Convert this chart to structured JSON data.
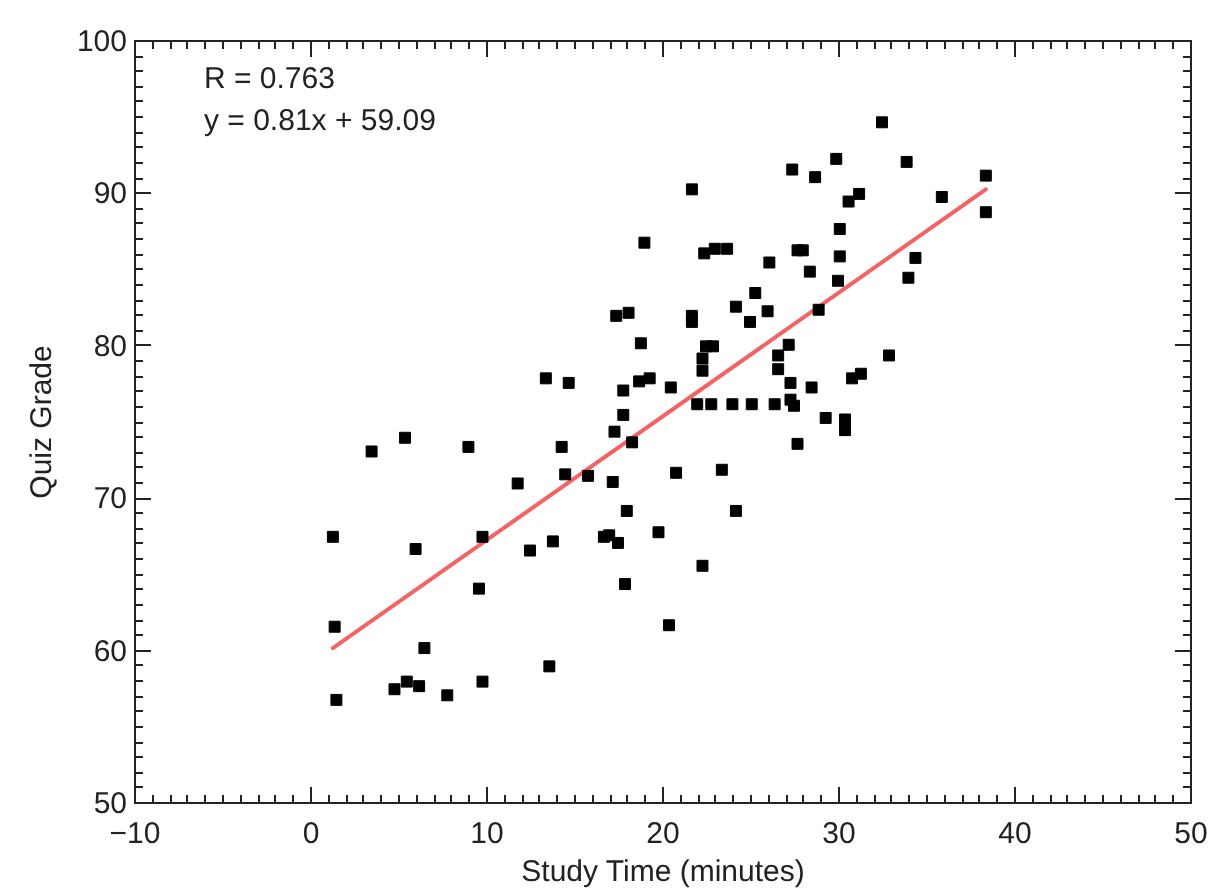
{
  "chart_data": {
    "type": "scatter",
    "xlabel": "Study Time (minutes)",
    "ylabel": "Quiz Grade",
    "annotations": [
      "R = 0.763",
      "y = 0.81x + 59.09"
    ],
    "xlim": [
      -10,
      50
    ],
    "ylim": [
      50,
      100
    ],
    "xticks": [
      -10,
      {
        "value": -9,
        "label": null
      },
      {
        "value": -8,
        "label": null
      },
      {
        "value": -7,
        "label": null
      },
      {
        "value": -6,
        "label": null
      },
      {
        "value": -5,
        "label": null
      },
      {
        "value": -4,
        "label": null
      },
      {
        "value": -3,
        "label": null
      },
      {
        "value": -2,
        "label": null
      },
      {
        "value": -1,
        "label": null
      },
      0,
      {
        "value": 1,
        "label": null
      },
      {
        "value": 2,
        "label": null
      },
      {
        "value": 3,
        "label": null
      },
      {
        "value": 4,
        "label": null
      },
      {
        "value": 5,
        "label": null
      },
      {
        "value": 6,
        "label": null
      },
      {
        "value": 7,
        "label": null
      },
      {
        "value": 8,
        "label": null
      },
      {
        "value": 9,
        "label": null
      },
      10,
      {
        "value": 11,
        "label": null
      },
      {
        "value": 12,
        "label": null
      },
      {
        "value": 13,
        "label": null
      },
      {
        "value": 14,
        "label": null
      },
      {
        "value": 15,
        "label": null
      },
      {
        "value": 16,
        "label": null
      },
      {
        "value": 17,
        "label": null
      },
      {
        "value": 18,
        "label": null
      },
      {
        "value": 19,
        "label": null
      },
      20,
      {
        "value": 21,
        "label": null
      },
      {
        "value": 22,
        "label": null
      },
      {
        "value": 23,
        "label": null
      },
      {
        "value": 24,
        "label": null
      },
      {
        "value": 25,
        "label": null
      },
      {
        "value": 26,
        "label": null
      },
      {
        "value": 27,
        "label": null
      },
      {
        "value": 28,
        "label": null
      },
      {
        "value": 29,
        "label": null
      },
      30,
      {
        "value": 31,
        "label": null
      },
      {
        "value": 32,
        "label": null
      },
      {
        "value": 33,
        "label": null
      },
      {
        "value": 34,
        "label": null
      },
      {
        "value": 35,
        "label": null
      },
      {
        "value": 36,
        "label": null
      },
      {
        "value": 37,
        "label": null
      },
      {
        "value": 38,
        "label": null
      },
      {
        "value": 39,
        "label": null
      },
      40,
      {
        "value": 41,
        "label": null
      },
      {
        "value": 42,
        "label": null
      },
      {
        "value": 43,
        "label": null
      },
      {
        "value": 44,
        "label": null
      },
      {
        "value": 45,
        "label": null
      },
      {
        "value": 46,
        "label": null
      },
      {
        "value": 47,
        "label": null
      },
      {
        "value": 48,
        "label": null
      },
      {
        "value": 49,
        "label": null
      },
      50
    ],
    "yticks": [
      50,
      {
        "value": 51,
        "label": null
      },
      {
        "value": 52,
        "label": null
      },
      {
        "value": 53,
        "label": null
      },
      {
        "value": 54,
        "label": null
      },
      {
        "value": 55,
        "label": null
      },
      {
        "value": 56,
        "label": null
      },
      {
        "value": 57,
        "label": null
      },
      {
        "value": 58,
        "label": null
      },
      {
        "value": 59,
        "label": null
      },
      60,
      {
        "value": 61,
        "label": null
      },
      {
        "value": 62,
        "label": null
      },
      {
        "value": 63,
        "label": null
      },
      {
        "value": 64,
        "label": null
      },
      {
        "value": 65,
        "label": null
      },
      {
        "value": 66,
        "label": null
      },
      {
        "value": 67,
        "label": null
      },
      {
        "value": 68,
        "label": null
      },
      {
        "value": 69,
        "label": null
      },
      70,
      {
        "value": 71,
        "label": null
      },
      {
        "value": 72,
        "label": null
      },
      {
        "value": 73,
        "label": null
      },
      {
        "value": 74,
        "label": null
      },
      {
        "value": 75,
        "label": null
      },
      {
        "value": 76,
        "label": null
      },
      {
        "value": 77,
        "label": null
      },
      {
        "value": 78,
        "label": null
      },
      {
        "value": 79,
        "label": null
      },
      80,
      {
        "value": 81,
        "label": null
      },
      {
        "value": 82,
        "label": null
      },
      {
        "value": 83,
        "label": null
      },
      {
        "value": 84,
        "label": null
      },
      {
        "value": 85,
        "label": null
      },
      {
        "value": 86,
        "label": null
      },
      {
        "value": 87,
        "label": null
      },
      {
        "value": 88,
        "label": null
      },
      {
        "value": 89,
        "label": null
      },
      90,
      {
        "value": 91,
        "label": null
      },
      {
        "value": 92,
        "label": null
      },
      {
        "value": 93,
        "label": null
      },
      {
        "value": 94,
        "label": null
      },
      {
        "value": 95,
        "label": null
      },
      {
        "value": 96,
        "label": null
      },
      {
        "value": 97,
        "label": null
      },
      {
        "value": 98,
        "label": null
      },
      {
        "value": 99,
        "label": null
      },
      100
    ],
    "grid": false,
    "series": [
      {
        "color": "#000000",
        "marker": "square",
        "x": [
          1.3,
          1.4,
          1.5,
          3.5,
          5.4,
          4.8,
          5.5,
          6.2,
          6.0,
          6.5,
          7.8,
          9.0,
          9.8,
          9.6,
          9.8,
          11.8,
          12.5,
          13.6,
          13.8,
          14.3,
          14.5,
          15.8,
          13.4,
          14.7,
          16.7,
          17.0,
          17.5,
          17.2,
          17.3,
          17.8,
          17.8,
          17.4,
          18.1,
          18.3,
          18.0,
          17.9,
          18.8,
          18.7,
          19.3,
          19.0,
          19.8,
          20.4,
          20.5,
          20.8,
          21.7,
          21.7,
          21.7,
          22.0,
          22.3,
          22.3,
          22.3,
          22.4,
          22.5,
          22.8,
          22.9,
          23.0,
          23.4,
          23.7,
          24.0,
          24.2,
          24.2,
          25.0,
          25.1,
          25.3,
          26.0,
          26.1,
          26.4,
          26.6,
          26.6,
          27.2,
          27.3,
          27.3,
          27.5,
          27.4,
          27.7,
          28.0,
          27.7,
          28.4,
          28.5,
          28.7,
          28.9,
          29.3,
          29.9,
          30.0,
          30.1,
          30.1,
          30.4,
          30.4,
          30.6,
          30.8,
          31.2,
          31.3,
          32.5,
          32.9,
          33.9,
          34.0,
          34.4,
          35.9,
          38.4,
          38.4
        ],
        "values": [
          67.4,
          61.5,
          56.7,
          73.0,
          73.9,
          57.4,
          57.9,
          57.6,
          66.6,
          60.1,
          57.0,
          73.3,
          67.4,
          64.0,
          57.9,
          70.9,
          66.5,
          58.9,
          67.1,
          73.3,
          71.5,
          71.4,
          77.8,
          77.5,
          67.4,
          67.5,
          67.0,
          71.0,
          74.3,
          75.4,
          77.0,
          81.9,
          82.1,
          73.6,
          69.1,
          64.3,
          80.1,
          77.6,
          77.8,
          86.7,
          67.7,
          61.6,
          77.2,
          71.6,
          90.2,
          81.9,
          81.5,
          76.1,
          79.1,
          78.3,
          65.5,
          86.0,
          79.9,
          76.1,
          79.9,
          86.3,
          71.8,
          86.3,
          76.1,
          82.5,
          69.1,
          81.5,
          76.1,
          83.4,
          82.2,
          85.4,
          76.1,
          79.3,
          78.4,
          80.0,
          77.5,
          76.4,
          76.0,
          91.5,
          86.2,
          86.2,
          73.5,
          84.8,
          77.2,
          91.0,
          82.3,
          75.2,
          92.2,
          84.2,
          87.6,
          85.8,
          75.1,
          74.4,
          89.4,
          77.8,
          89.9,
          78.1,
          94.6,
          79.3,
          92.0,
          84.4,
          85.7,
          89.7,
          91.1,
          88.7
        ]
      },
      {
        "type": "line",
        "color": "#f56262",
        "x": [
          1.3,
          38.4
        ],
        "values": [
          60.1,
          90.2
        ]
      }
    ]
  }
}
